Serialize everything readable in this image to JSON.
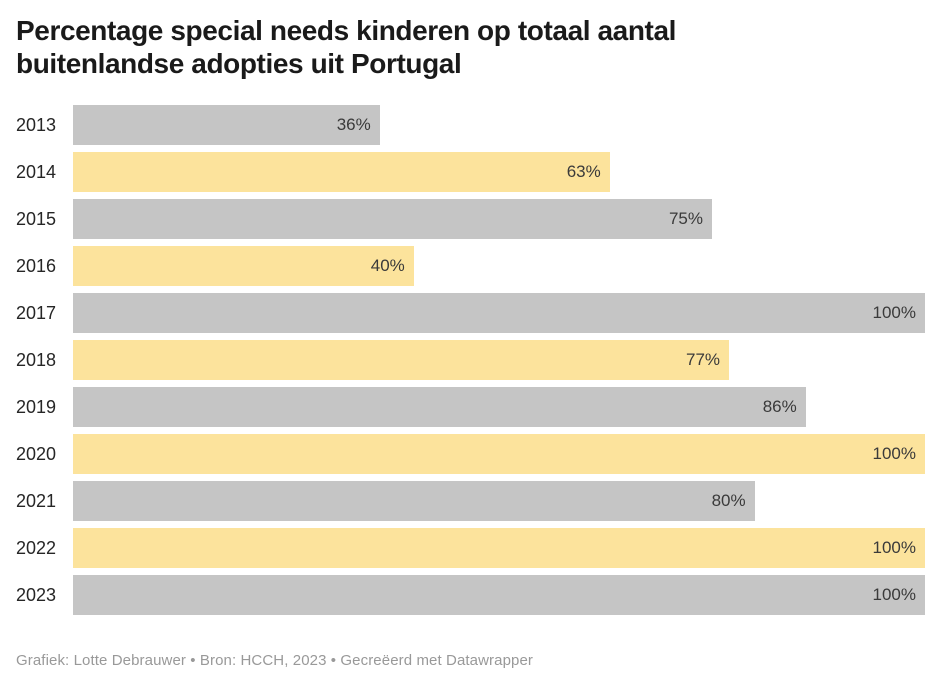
{
  "header": {
    "title": "Percentage special needs kinderen op totaal aantal buitenlandse adopties uit Portugal",
    "title_lines": [
      "Percentage special needs kinderen op totaal aantal",
      "buitenlandse adopties uit Portugal"
    ]
  },
  "colors": {
    "bar_gray": "#c5c5c5",
    "bar_yellow": "#fce39c",
    "title_text": "#1a1a1a",
    "year_label_text": "#262626",
    "value_label_text": "#3a3a3a",
    "footer_text": "#999999",
    "background": "#ffffff"
  },
  "chart_data": {
    "type": "bar",
    "orientation": "horizontal",
    "title": "Percentage special needs kinderen op totaal aantal buitenlandse adopties uit Portugal",
    "categories": [
      "2013",
      "2014",
      "2015",
      "2016",
      "2017",
      "2018",
      "2019",
      "2020",
      "2021",
      "2022",
      "2023"
    ],
    "values": [
      36,
      63,
      75,
      40,
      100,
      77,
      86,
      100,
      80,
      100,
      100
    ],
    "value_labels": [
      "36%",
      "63%",
      "75%",
      "40%",
      "100%",
      "77%",
      "86%",
      "100%",
      "80%",
      "100%",
      "100%"
    ],
    "bar_colors": [
      "#c5c5c5",
      "#fce39c",
      "#c5c5c5",
      "#fce39c",
      "#c5c5c5",
      "#fce39c",
      "#c5c5c5",
      "#fce39c",
      "#c5c5c5",
      "#fce39c",
      "#c5c5c5"
    ],
    "value_suffix": "%",
    "xlabel": "",
    "ylabel": "",
    "xlim": [
      0,
      100
    ],
    "grid": false,
    "legend": false,
    "value_label_position": "inside-end"
  },
  "footer": {
    "attribution": "Grafiek: Lotte Debrauwer • Bron: HCCH, 2023 • Gecreëerd met Datawrapper"
  }
}
